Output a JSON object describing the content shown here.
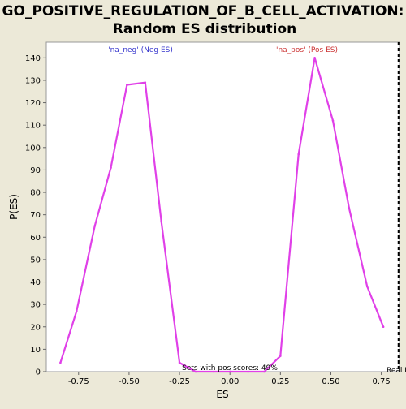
{
  "chart_data": {
    "type": "line",
    "title": "GO_POSITIVE_REGULATION_OF_B_CELL_ACTIVATION:",
    "subtitle": "Random ES distribution",
    "xlabel": "ES",
    "ylabel": "P(ES)",
    "xlim": [
      -0.91,
      0.84
    ],
    "ylim": [
      0,
      147
    ],
    "xticks": [
      -0.75,
      -0.5,
      -0.25,
      0.0,
      0.25,
      0.5,
      0.75
    ],
    "xtick_labels": [
      "-0.75",
      "-0.50",
      "-0.25",
      "0.00",
      "0.25",
      "0.50",
      "0.75"
    ],
    "yticks": [
      0,
      10,
      20,
      30,
      40,
      50,
      60,
      70,
      80,
      90,
      100,
      110,
      120,
      130,
      140
    ],
    "series": [
      {
        "name": "'na_neg' (Neg ES)",
        "label_color": "#3333cc",
        "color": "#e040e8",
        "points": [
          [
            -0.84,
            4
          ],
          [
            -0.76,
            27
          ],
          [
            -0.67,
            65
          ],
          [
            -0.59,
            91
          ],
          [
            -0.51,
            128
          ],
          [
            -0.42,
            129
          ],
          [
            -0.34,
            67
          ],
          [
            -0.25,
            4
          ],
          [
            -0.17,
            0
          ],
          [
            -0.08,
            0
          ],
          [
            0.0,
            0
          ]
        ]
      },
      {
        "name": "'na_pos' (Pos ES)",
        "label_color": "#cc3333",
        "color": "#e040e8",
        "points": [
          [
            0.0,
            0
          ],
          [
            0.09,
            0
          ],
          [
            0.17,
            0
          ],
          [
            0.25,
            7
          ],
          [
            0.34,
            97
          ],
          [
            0.42,
            140
          ],
          [
            0.51,
            112
          ],
          [
            0.59,
            73
          ],
          [
            0.68,
            38
          ],
          [
            0.76,
            20
          ]
        ]
      }
    ],
    "annotations": {
      "pos_scores": "Sets with pos scores: 49%",
      "real_es_label": "Real ES"
    },
    "real_es_value": 0.835,
    "grid": false
  }
}
